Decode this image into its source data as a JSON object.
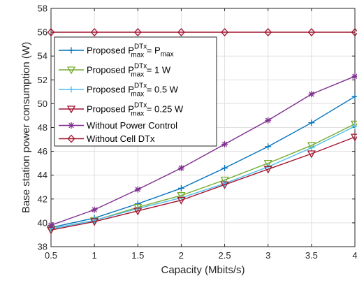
{
  "chart_data": {
    "type": "line",
    "xlabel": "Capacity (Mbits/s)",
    "ylabel": "Base station power consumption (W)",
    "xlim": [
      0.5,
      4
    ],
    "ylim": [
      38,
      58
    ],
    "x": [
      0.5,
      1,
      1.5,
      2,
      2.5,
      3,
      3.5,
      4
    ],
    "xticks": [
      "0.5",
      "1",
      "1.5",
      "2",
      "2.5",
      "3",
      "3.5",
      "4"
    ],
    "yticks": [
      "38",
      "40",
      "42",
      "44",
      "46",
      "48",
      "50",
      "52",
      "54",
      "56",
      "58"
    ],
    "grid": true,
    "legend_position": "upper-left",
    "series": [
      {
        "name": "Proposed P_max^DTx = P_max",
        "legend": {
          "pre": "Proposed P",
          "sup": "DTx",
          "sub": "max",
          "post": " = P",
          "post_sub": "max"
        },
        "color": "#0072BD",
        "marker": "plus",
        "values": [
          39.6,
          40.4,
          41.6,
          42.9,
          44.6,
          46.4,
          48.4,
          50.6
        ]
      },
      {
        "name": "Proposed P_max^DTx = 1 W",
        "legend": {
          "pre": "Proposed P",
          "sup": "DTx",
          "sub": "max",
          "post": " = 1 W"
        },
        "color": "#77AC30",
        "marker": "triangle-down",
        "values": [
          39.5,
          40.2,
          41.3,
          42.3,
          43.6,
          45.0,
          46.5,
          48.3
        ]
      },
      {
        "name": "Proposed P_max^DTx = 0.5 W",
        "legend": {
          "pre": "Proposed P",
          "sup": "DTx",
          "sub": "max",
          "post": " = 0.5 W"
        },
        "color": "#4DBEEE",
        "marker": "plus",
        "values": [
          39.5,
          40.2,
          41.2,
          42.1,
          43.3,
          44.7,
          46.3,
          48.1
        ]
      },
      {
        "name": "Proposed P_max^DTx = 0.25 W",
        "legend": {
          "pre": "Proposed P",
          "sup": "DTx",
          "sub": "max",
          "post": " = 0.25 W"
        },
        "color": "#A2142F",
        "marker": "triangle-down",
        "values": [
          39.4,
          40.1,
          41.0,
          41.9,
          43.2,
          44.5,
          45.8,
          47.2
        ]
      },
      {
        "name": "Without Power Control",
        "legend": {
          "pre": "Without Power Control"
        },
        "color": "#7E2F8E",
        "marker": "star",
        "values": [
          39.8,
          41.1,
          42.8,
          44.6,
          46.6,
          48.6,
          50.8,
          52.3
        ]
      },
      {
        "name": "Without Cell DTx",
        "legend": {
          "pre": "Without Cell DTx"
        },
        "color": "#A2142F",
        "marker": "diamond",
        "values": [
          56,
          56,
          56,
          56,
          56,
          56,
          56,
          56
        ]
      }
    ]
  }
}
